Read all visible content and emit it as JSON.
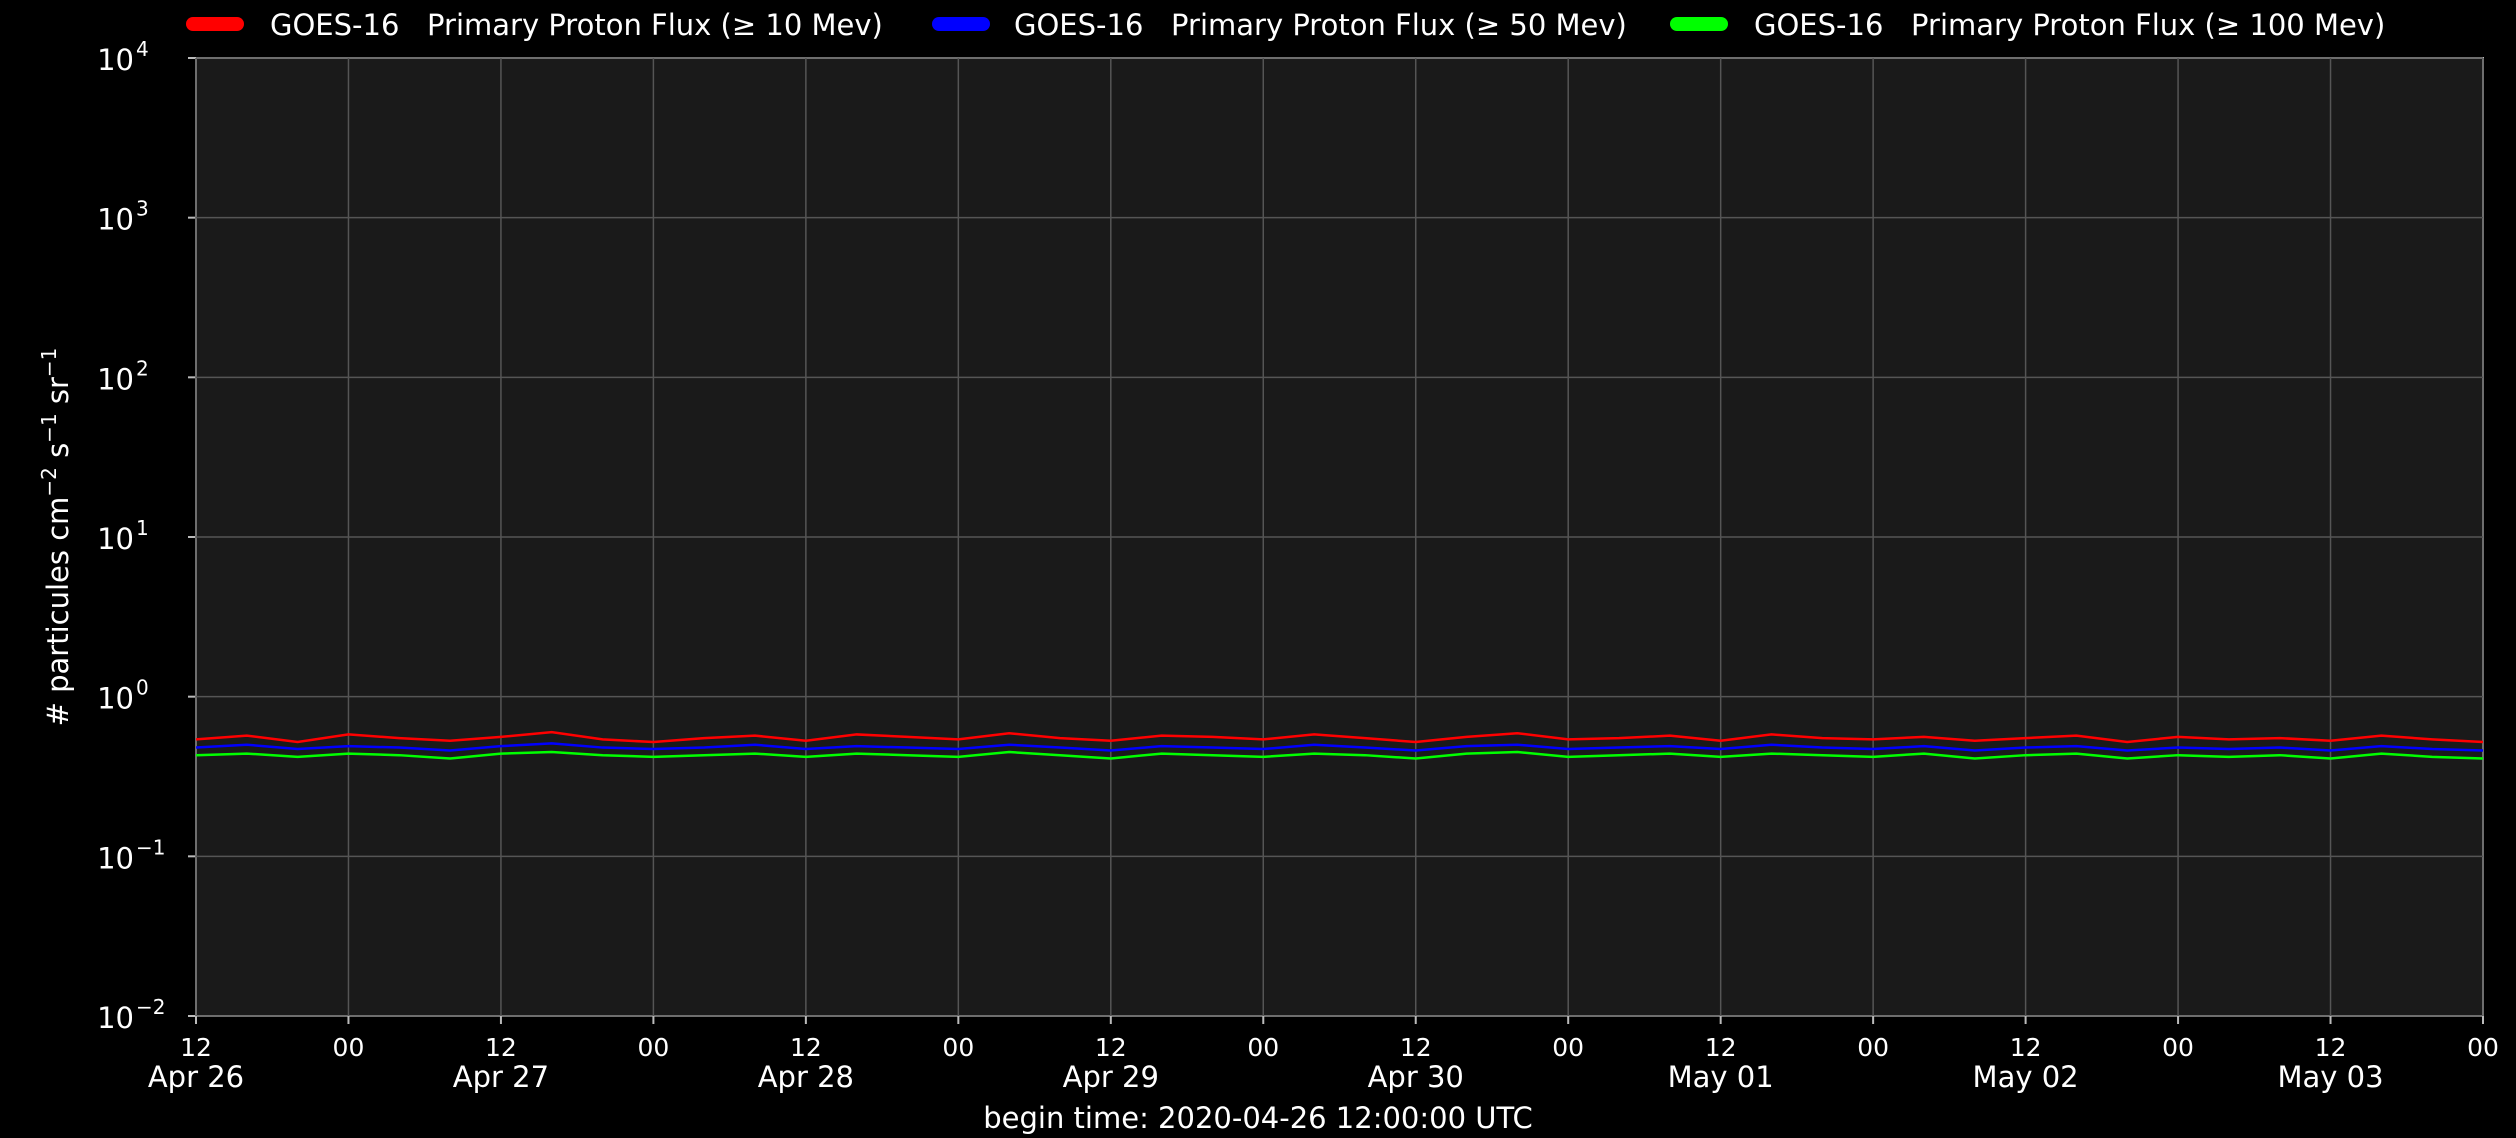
{
  "chart_data": {
    "type": "line",
    "xlabel": "begin time: 2020-04-26 12:00:00 UTC",
    "ylabel": [
      {
        "text": "# particules cm"
      },
      {
        "text": "−2",
        "sup": true
      },
      {
        "text": " s"
      },
      {
        "text": "−1",
        "sup": true
      },
      {
        "text": " sr"
      },
      {
        "text": "−1",
        "sup": true
      }
    ],
    "log_y": true,
    "grid": true,
    "legend": "top",
    "xlim": [
      "2020-04-26 12:00",
      "2020-05-04 00:00"
    ],
    "ylim": [
      0.01,
      10000
    ],
    "yticks": [
      {
        "value": 0.01,
        "label": "10",
        "exponent": "−2"
      },
      {
        "value": 0.1,
        "label": "10",
        "exponent": "−1"
      },
      {
        "value": 1,
        "label": "10",
        "exponent": "0"
      },
      {
        "value": 10,
        "label": "10",
        "exponent": "1"
      },
      {
        "value": 100,
        "label": "10",
        "exponent": "2"
      },
      {
        "value": 1000,
        "label": "10",
        "exponent": "3"
      },
      {
        "value": 10000,
        "label": "10",
        "exponent": "4"
      }
    ],
    "xticks": [
      {
        "value": "2020-04-26 12:00",
        "label": "12",
        "date": "Apr 26"
      },
      {
        "value": "2020-04-27 00:00",
        "label": "00"
      },
      {
        "value": "2020-04-27 12:00",
        "label": "12",
        "date": "Apr 27"
      },
      {
        "value": "2020-04-28 00:00",
        "label": "00"
      },
      {
        "value": "2020-04-28 12:00",
        "label": "12",
        "date": "Apr 28"
      },
      {
        "value": "2020-04-29 00:00",
        "label": "00"
      },
      {
        "value": "2020-04-29 12:00",
        "label": "12",
        "date": "Apr 29"
      },
      {
        "value": "2020-04-30 00:00",
        "label": "00"
      },
      {
        "value": "2020-04-30 12:00",
        "label": "12",
        "date": "Apr 30"
      },
      {
        "value": "2020-05-01 00:00",
        "label": "00"
      },
      {
        "value": "2020-05-01 12:00",
        "label": "12",
        "date": "May 01"
      },
      {
        "value": "2020-05-02 00:00",
        "label": "00"
      },
      {
        "value": "2020-05-02 12:00",
        "label": "12",
        "date": "May 02"
      },
      {
        "value": "2020-05-03 00:00",
        "label": "00"
      },
      {
        "value": "2020-05-03 12:00",
        "label": "12",
        "date": "May 03"
      },
      {
        "value": "2020-05-04 00:00",
        "label": "00"
      }
    ],
    "x": [
      "2020-04-26 12:00",
      "2020-04-26 16:00",
      "2020-04-26 20:00",
      "2020-04-27 00:00",
      "2020-04-27 04:00",
      "2020-04-27 08:00",
      "2020-04-27 12:00",
      "2020-04-27 16:00",
      "2020-04-27 20:00",
      "2020-04-28 00:00",
      "2020-04-28 04:00",
      "2020-04-28 08:00",
      "2020-04-28 12:00",
      "2020-04-28 16:00",
      "2020-04-28 20:00",
      "2020-04-29 00:00",
      "2020-04-29 04:00",
      "2020-04-29 08:00",
      "2020-04-29 12:00",
      "2020-04-29 16:00",
      "2020-04-29 20:00",
      "2020-04-30 00:00",
      "2020-04-30 04:00",
      "2020-04-30 08:00",
      "2020-04-30 12:00",
      "2020-04-30 16:00",
      "2020-04-30 20:00",
      "2020-05-01 00:00",
      "2020-05-01 04:00",
      "2020-05-01 08:00",
      "2020-05-01 12:00",
      "2020-05-01 16:00",
      "2020-05-01 20:00",
      "2020-05-02 00:00",
      "2020-05-02 04:00",
      "2020-05-02 08:00",
      "2020-05-02 12:00",
      "2020-05-02 16:00",
      "2020-05-02 20:00",
      "2020-05-03 00:00",
      "2020-05-03 04:00",
      "2020-05-03 08:00",
      "2020-05-03 12:00",
      "2020-05-03 16:00",
      "2020-05-03 20:00",
      "2020-05-04 00:00"
    ],
    "series": [
      {
        "name": "GOES-16   Primary Proton Flux (≥ 10 Mev)",
        "color": "#ff0000",
        "values": [
          0.54,
          0.57,
          0.52,
          0.58,
          0.55,
          0.53,
          0.56,
          0.6,
          0.54,
          0.52,
          0.55,
          0.57,
          0.53,
          0.58,
          0.56,
          0.54,
          0.59,
          0.55,
          0.53,
          0.57,
          0.56,
          0.54,
          0.58,
          0.55,
          0.52,
          0.56,
          0.59,
          0.54,
          0.55,
          0.57,
          0.53,
          0.58,
          0.55,
          0.54,
          0.56,
          0.53,
          0.55,
          0.57,
          0.52,
          0.56,
          0.54,
          0.55,
          0.53,
          0.57,
          0.54,
          0.52
        ]
      },
      {
        "name": "GOES-16   Primary Proton Flux (≥ 50 Mev)",
        "color": "#0000ff",
        "values": [
          0.48,
          0.5,
          0.47,
          0.49,
          0.48,
          0.46,
          0.49,
          0.51,
          0.48,
          0.47,
          0.48,
          0.5,
          0.47,
          0.49,
          0.48,
          0.47,
          0.5,
          0.48,
          0.46,
          0.49,
          0.48,
          0.47,
          0.5,
          0.48,
          0.46,
          0.49,
          0.5,
          0.47,
          0.48,
          0.49,
          0.47,
          0.5,
          0.48,
          0.47,
          0.49,
          0.46,
          0.48,
          0.49,
          0.46,
          0.48,
          0.47,
          0.48,
          0.46,
          0.49,
          0.47,
          0.46
        ]
      },
      {
        "name": "GOES-16   Primary Proton Flux (≥ 100 Mev)",
        "color": "#00ff00",
        "values": [
          0.43,
          0.44,
          0.42,
          0.44,
          0.43,
          0.41,
          0.44,
          0.45,
          0.43,
          0.42,
          0.43,
          0.44,
          0.42,
          0.44,
          0.43,
          0.42,
          0.45,
          0.43,
          0.41,
          0.44,
          0.43,
          0.42,
          0.44,
          0.43,
          0.41,
          0.44,
          0.45,
          0.42,
          0.43,
          0.44,
          0.42,
          0.44,
          0.43,
          0.42,
          0.44,
          0.41,
          0.43,
          0.44,
          0.41,
          0.43,
          0.42,
          0.43,
          0.41,
          0.44,
          0.42,
          0.41
        ]
      }
    ]
  }
}
